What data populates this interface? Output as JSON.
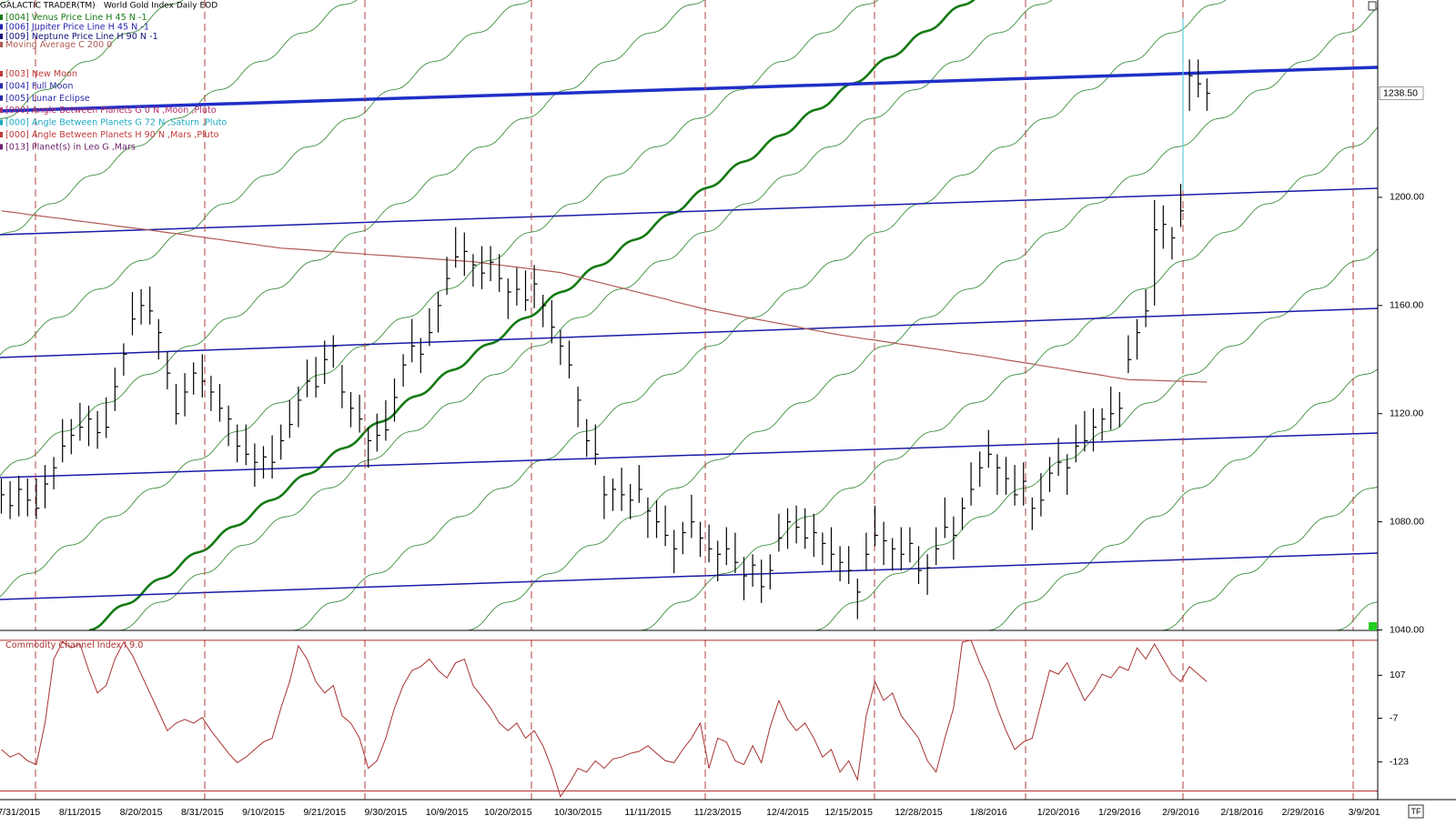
{
  "chart_data": {
    "type": "ohlc",
    "app_title": "GALACTIC TRADER(TM)",
    "title": "World Gold Index Daily EOD",
    "corner_label": "TF",
    "legend": [
      {
        "text": "[004] Venus Price Line H 45 N -1",
        "color": "#177a17"
      },
      {
        "text": "[006] Jupiter Price Line H 45 N -1",
        "color": "#2323b0"
      },
      {
        "text": "[009] Neptune Price Line H 90 N -1",
        "color": "#12127a"
      },
      {
        "text": "[003] New Moon",
        "color": "#c23a3a"
      },
      {
        "text": "[004] Full Moon",
        "color": "#2a2aa8"
      },
      {
        "text": "[005] Lunar Eclipse",
        "color": "#2a2aa8"
      },
      {
        "text": "[000] Angle Between Planets G 0 N ,Moon ,Pluto",
        "color": "#b0306a"
      },
      {
        "text": "[000] Angle Between Planets G 72 N ,Saturn ,Pluto",
        "color": "#1fa9c4"
      },
      {
        "text": "[000] Angle Between Planets H 90 N ,Mars ,Pluto",
        "color": "#c23a3a"
      },
      {
        "text": "[013] Planet(s) in Leo G ,Mars",
        "color": "#6a1f6a"
      }
    ],
    "categories": [
      null,
      null,
      "7/31/2015",
      null,
      null,
      null,
      null,
      null,
      null,
      "8/11/2015",
      null,
      null,
      null,
      null,
      null,
      null,
      "8/20/2015",
      null,
      null,
      null,
      null,
      null,
      null,
      "8/31/2015",
      null,
      null,
      null,
      null,
      null,
      null,
      "9/10/2015",
      null,
      null,
      null,
      null,
      null,
      null,
      "9/21/2015",
      null,
      null,
      null,
      null,
      null,
      null,
      "9/30/2015",
      null,
      null,
      null,
      null,
      null,
      null,
      "10/9/2015",
      null,
      null,
      null,
      null,
      null,
      null,
      "10/20/2015",
      null,
      null,
      null,
      null,
      null,
      null,
      null,
      "10/30/2015",
      null,
      null,
      null,
      null,
      null,
      null,
      null,
      "11/11/2015",
      null,
      null,
      null,
      null,
      null,
      null,
      null,
      "11/23/2015",
      null,
      null,
      null,
      null,
      null,
      null,
      null,
      "12/4/2015",
      null,
      null,
      null,
      null,
      null,
      null,
      "12/15/2015",
      null,
      null,
      null,
      null,
      null,
      null,
      null,
      "12/28/2015",
      null,
      null,
      null,
      null,
      null,
      null,
      null,
      "1/8/2016",
      null,
      null,
      null,
      null,
      null,
      null,
      null,
      "1/20/2016",
      null,
      null,
      null,
      null,
      null,
      null,
      "1/29/2016",
      null,
      null,
      null,
      null,
      null,
      null,
      "2/9/2016",
      null,
      null,
      null,
      null,
      null,
      null,
      "2/18/2016",
      null,
      null,
      null,
      null,
      null,
      null,
      "2/29/2016",
      null,
      null,
      null,
      null,
      null,
      null,
      "3/9/201",
      null,
      null
    ],
    "high": [
      1096,
      1095,
      1097,
      1096,
      1096,
      1101,
      1104,
      1118,
      1118,
      1124,
      1123,
      1121,
      1126,
      1137,
      1146,
      1165,
      1166,
      1167,
      1155,
      1143,
      1131,
      1135,
      1139,
      1142,
      1134,
      1131,
      1123,
      1116,
      1116,
      1109,
      1108,
      1112,
      1116,
      1125,
      1130,
      1140,
      1141,
      1147,
      1149,
      1138,
      1128,
      1127,
      1115,
      1120,
      1125,
      1133,
      1142,
      1155,
      1148,
      1159,
      1165,
      1178,
      1189,
      1187,
      1179,
      1182,
      1182,
      1179,
      1170,
      1174,
      1173,
      1175,
      1164,
      1162,
      1151,
      1147,
      1130,
      1118,
      1116,
      1097,
      1096,
      1100,
      1094,
      1101,
      1089,
      1088,
      1086,
      1077,
      1080,
      1090,
      1080,
      1079,
      1073,
      1078,
      1076,
      1067,
      1068,
      1066,
      1068,
      1083,
      1085,
      1086,
      1085,
      1083,
      1076,
      1078,
      1071,
      1071,
      1059,
      1076,
      1086,
      1080,
      1074,
      1078,
      1078,
      1071,
      1068,
      1078,
      1089,
      1082,
      1089,
      1102,
      1106,
      1114,
      1105,
      1104,
      1101,
      1102,
      1089,
      1098,
      1104,
      1111,
      1105,
      1116,
      1121,
      1122,
      1122,
      1130,
      1128,
      1149,
      1155,
      1166,
      1199,
      1197,
      1189,
      1205,
      1251,
      1251,
      1244,
      null,
      null,
      null,
      null,
      null,
      null,
      null,
      null,
      null,
      null,
      null,
      null,
      null,
      null,
      null,
      null,
      null,
      null,
      null,
      null
    ],
    "low": [
      1083,
      1081,
      1082,
      1082,
      1081,
      1085,
      1092,
      1102,
      1105,
      1110,
      1108,
      1107,
      1111,
      1121,
      1134,
      1149,
      1153,
      1153,
      1140,
      1129,
      1116,
      1119,
      1127,
      1126,
      1121,
      1117,
      1108,
      1102,
      1101,
      1093,
      1096,
      1096,
      1103,
      1111,
      1115,
      1126,
      1126,
      1131,
      1137,
      1122,
      1115,
      1113,
      1100,
      1106,
      1110,
      1117,
      1130,
      1139,
      1135,
      1145,
      1150,
      1164,
      1174,
      1171,
      1167,
      1166,
      1169,
      1165,
      1155,
      1160,
      1158,
      1159,
      1152,
      1146,
      1138,
      1133,
      1115,
      1104,
      1101,
      1081,
      1084,
      1084,
      1081,
      1087,
      1074,
      1074,
      1071,
      1061,
      1068,
      1074,
      1067,
      1065,
      1058,
      1064,
      1061,
      1051,
      1056,
      1050,
      1055,
      1069,
      1070,
      1072,
      1070,
      1067,
      1064,
      1062,
      1058,
      1057,
      1044,
      1062,
      1071,
      1064,
      1062,
      1062,
      1065,
      1057,
      1053,
      1064,
      1074,
      1066,
      1077,
      1086,
      1093,
      1100,
      1090,
      1090,
      1086,
      1086,
      1077,
      1082,
      1091,
      1097,
      1090,
      1102,
      1106,
      1106,
      1110,
      1114,
      1115,
      1135,
      1140,
      1152,
      1160,
      1181,
      1177,
      1189,
      1232,
      1237,
      1232,
      null,
      null,
      null,
      null,
      null,
      null,
      null,
      null,
      null,
      null,
      null,
      null,
      null,
      null,
      null,
      null,
      null,
      null,
      null,
      null
    ],
    "close": [
      1090,
      1086,
      1092,
      1088,
      1085,
      1094,
      1100,
      1108,
      1112,
      1115,
      1118,
      1113,
      1115,
      1130,
      1142,
      1155,
      1160,
      1158,
      1150,
      1135,
      1120,
      1128,
      1135,
      1132,
      1128,
      1122,
      1118,
      1108,
      1105,
      1102,
      1104,
      1102,
      1110,
      1116,
      1125,
      1132,
      1130,
      1140,
      1145,
      1128,
      1122,
      1118,
      1110,
      1112,
      1114,
      1126,
      1138,
      1145,
      1142,
      1150,
      1160,
      1170,
      1178,
      1180,
      1175,
      1172,
      1176,
      1170,
      1165,
      1166,
      1162,
      1168,
      1160,
      1152,
      1145,
      1138,
      1125,
      1110,
      1105,
      1090,
      1092,
      1090,
      1088,
      1092,
      1084,
      1080,
      1075,
      1070,
      1076,
      1080,
      1074,
      1070,
      1068,
      1070,
      1065,
      1060,
      1064,
      1056,
      1062,
      1074,
      1080,
      1078,
      1074,
      1076,
      1072,
      1068,
      1065,
      1062,
      1054,
      1068,
      1075,
      1073,
      1070,
      1068,
      1072,
      1062,
      1063,
      1070,
      1078,
      1075,
      1085,
      1092,
      1100,
      1105,
      1100,
      1096,
      1090,
      1095,
      1085,
      1088,
      1098,
      1102,
      1100,
      1108,
      1110,
      1115,
      1118,
      1120,
      1122,
      1140,
      1150,
      1158,
      1188,
      1190,
      1185,
      1195,
      1245,
      1242,
      1238.5,
      null,
      null,
      null,
      null,
      null,
      null,
      null,
      null,
      null,
      null,
      null,
      null,
      null,
      null,
      null,
      null,
      null,
      null,
      null,
      null
    ],
    "bar_color": "#000000",
    "series": [
      {
        "name": "Moving Average C 200 0",
        "color": "#b05a55",
        "values": [
          1195.0,
          1194.6,
          1194.2,
          1193.7,
          1193.3,
          1192.9,
          1192.5,
          1192.1,
          1191.6,
          1191.2,
          1190.8,
          1190.4,
          1190.0,
          1189.5,
          1189.1,
          1188.7,
          1188.3,
          1187.9,
          1187.4,
          1187.0,
          1186.6,
          1186.2,
          1185.7,
          1185.3,
          1184.8,
          1184.4,
          1183.9,
          1183.5,
          1183.0,
          1182.6,
          1182.1,
          1181.7,
          1181.2,
          1181.0,
          1180.8,
          1180.6,
          1180.3,
          1180.1,
          1179.9,
          1179.6,
          1179.4,
          1179.2,
          1178.9,
          1178.7,
          1178.5,
          1178.3,
          1178.0,
          1177.8,
          1177.6,
          1177.3,
          1177.1,
          1176.9,
          1176.6,
          1176.4,
          1176.2,
          1175.8,
          1175.4,
          1175.0,
          1174.6,
          1174.2,
          1173.8,
          1173.4,
          1173.0,
          1172.6,
          1172.2,
          1171.4,
          1170.6,
          1169.7,
          1168.9,
          1168.1,
          1167.3,
          1166.5,
          1165.6,
          1164.8,
          1164.0,
          1163.2,
          1162.4,
          1161.5,
          1160.7,
          1159.9,
          1159.1,
          1158.3,
          1157.7,
          1157.1,
          1156.4,
          1155.8,
          1155.2,
          1154.6,
          1154.0,
          1153.4,
          1152.8,
          1152.2,
          1151.5,
          1150.9,
          1150.3,
          1149.7,
          1149.1,
          1148.6,
          1148.1,
          1147.6,
          1147.2,
          1146.7,
          1146.2,
          1145.7,
          1145.3,
          1144.8,
          1144.3,
          1143.9,
          1143.4,
          1142.9,
          1142.4,
          1142.0,
          1141.5,
          1141.0,
          1140.5,
          1139.9,
          1139.4,
          1138.9,
          1138.4,
          1137.8,
          1137.3,
          1136.8,
          1136.3,
          1135.7,
          1135.2,
          1134.7,
          1134.2,
          1133.6,
          1133.1,
          1132.6,
          1132.5,
          1132.4,
          1132.3,
          1132.2,
          1132.1,
          1132.0,
          1131.9,
          1131.8,
          1131.7,
          null,
          null,
          null,
          null,
          null,
          null,
          null,
          null,
          null,
          null,
          null,
          null,
          null,
          null,
          null,
          null,
          null,
          null,
          null,
          null
        ]
      }
    ],
    "ylim": [
      1040,
      1273
    ],
    "yticks": [
      {
        "value": 1040,
        "label": "1040.00"
      },
      {
        "value": 1080,
        "label": "1080.00"
      },
      {
        "value": 1120,
        "label": "1120.00"
      },
      {
        "value": 1160,
        "label": "1160.00"
      },
      {
        "value": 1200,
        "label": "1200.00"
      }
    ],
    "last_price": {
      "value": 1238.5,
      "label": "1238.50"
    },
    "cci": {
      "title": "Commodity Channel Index I 9.0",
      "color": "#a83232",
      "values": [
        -90,
        -110,
        -100,
        -120,
        -130,
        -20,
        150,
        195,
        180,
        190,
        120,
        60,
        80,
        150,
        195,
        160,
        110,
        60,
        10,
        -40,
        -20,
        -10,
        -20,
        -5,
        -40,
        -70,
        -100,
        -125,
        -110,
        -90,
        -70,
        -60,
        20,
        90,
        185,
        150,
        90,
        60,
        80,
        0,
        -20,
        -60,
        -140,
        -120,
        -60,
        20,
        80,
        120,
        130,
        150,
        120,
        100,
        140,
        150,
        80,
        50,
        20,
        -20,
        -40,
        -20,
        -60,
        -40,
        -80,
        -140,
        -215,
        -180,
        -140,
        -150,
        -120,
        -140,
        -115,
        -110,
        -100,
        -95,
        -80,
        -100,
        -120,
        -125,
        -90,
        -60,
        -20,
        -140,
        -60,
        -70,
        -120,
        -130,
        -80,
        -125,
        -30,
        40,
        -10,
        -40,
        -20,
        -60,
        -110,
        -90,
        -150,
        -120,
        -170,
        0,
        90,
        40,
        60,
        0,
        -30,
        -60,
        -120,
        -150,
        -60,
        20,
        195,
        200,
        140,
        90,
        20,
        -40,
        -90,
        -70,
        -60,
        30,
        120,
        110,
        140,
        90,
        40,
        70,
        110,
        100,
        130,
        120,
        180,
        150,
        190,
        150,
        110,
        90,
        130,
        110,
        90,
        null,
        null,
        null,
        null,
        null,
        null,
        null,
        null,
        null,
        null,
        null,
        null,
        null,
        null,
        null,
        null,
        null,
        null,
        null,
        null
      ],
      "ylim": [
        -223,
        202
      ],
      "yticks": [
        107,
        -7,
        -123
      ],
      "hlines": [
        200,
        -200
      ]
    }
  }
}
